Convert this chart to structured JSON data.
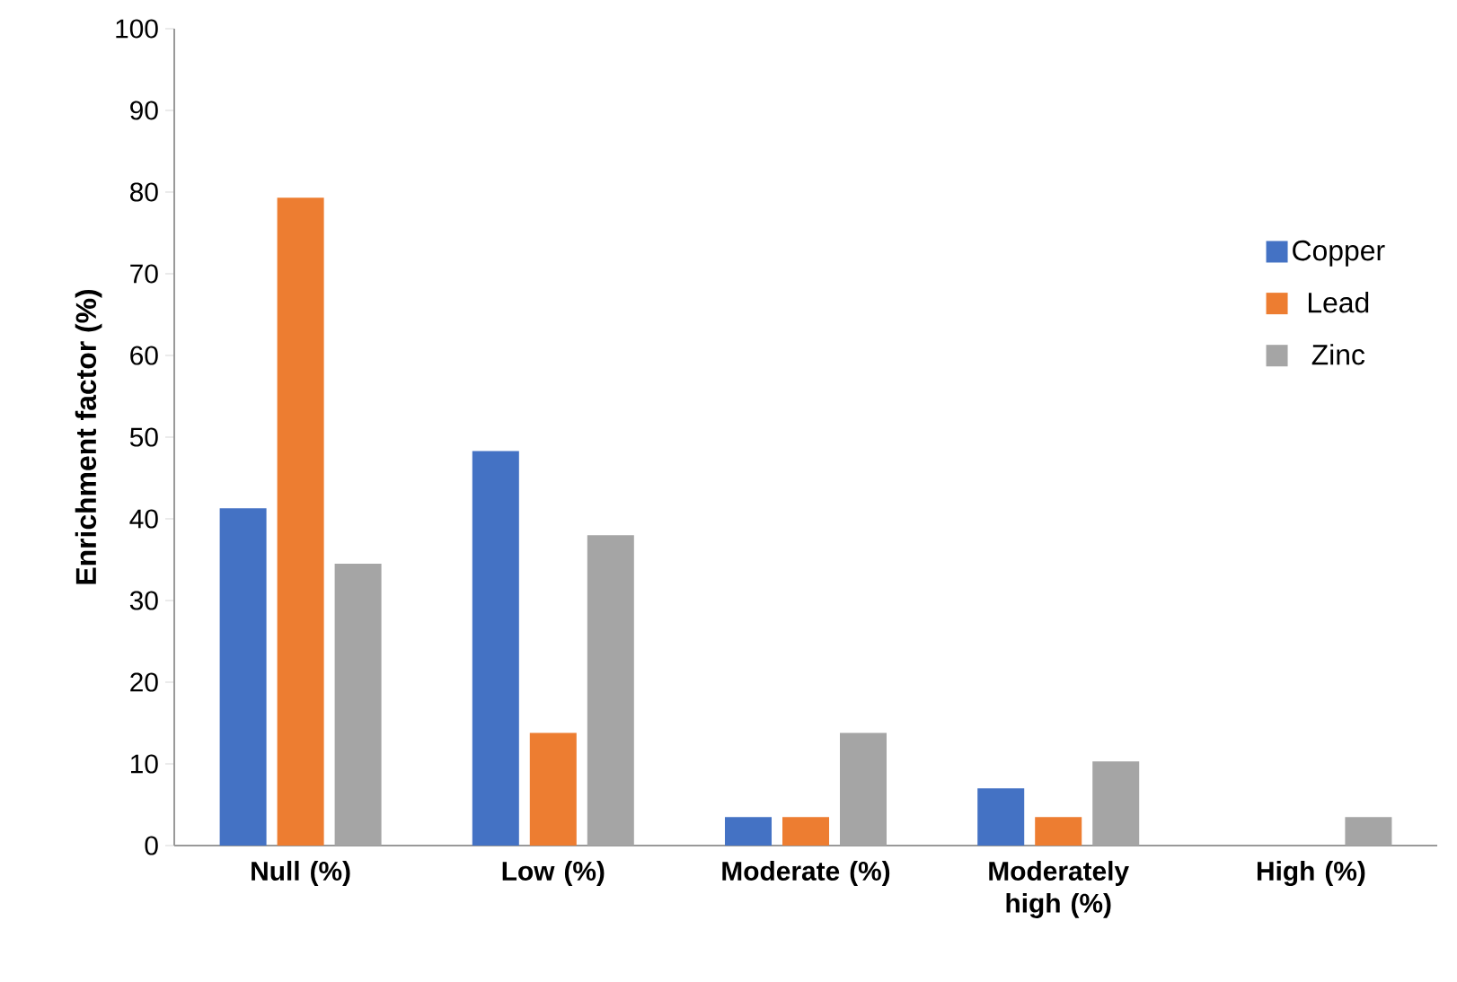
{
  "chart_data": {
    "type": "bar",
    "ylabel": "Enrichment factor (%)",
    "categories": [
      "Null (%)",
      "Low (%)",
      "Moderate (%)",
      "Moderately high (%)",
      "High (%)"
    ],
    "series": [
      {
        "name": "Copper",
        "color": "#4472c4",
        "values": [
          41.3,
          48.3,
          3.5,
          7.0,
          0
        ]
      },
      {
        "name": "Lead",
        "color": "#ed7d31",
        "values": [
          79.3,
          13.8,
          3.5,
          3.5,
          0
        ]
      },
      {
        "name": "Zinc",
        "color": "#a5a5a5",
        "values": [
          34.5,
          38.0,
          13.8,
          10.3,
          3.5
        ]
      }
    ],
    "ylim": [
      0,
      100
    ],
    "yticks": [
      0,
      10,
      20,
      30,
      40,
      50,
      60,
      70,
      80,
      90,
      100
    ],
    "grid": false,
    "legend": "right"
  }
}
